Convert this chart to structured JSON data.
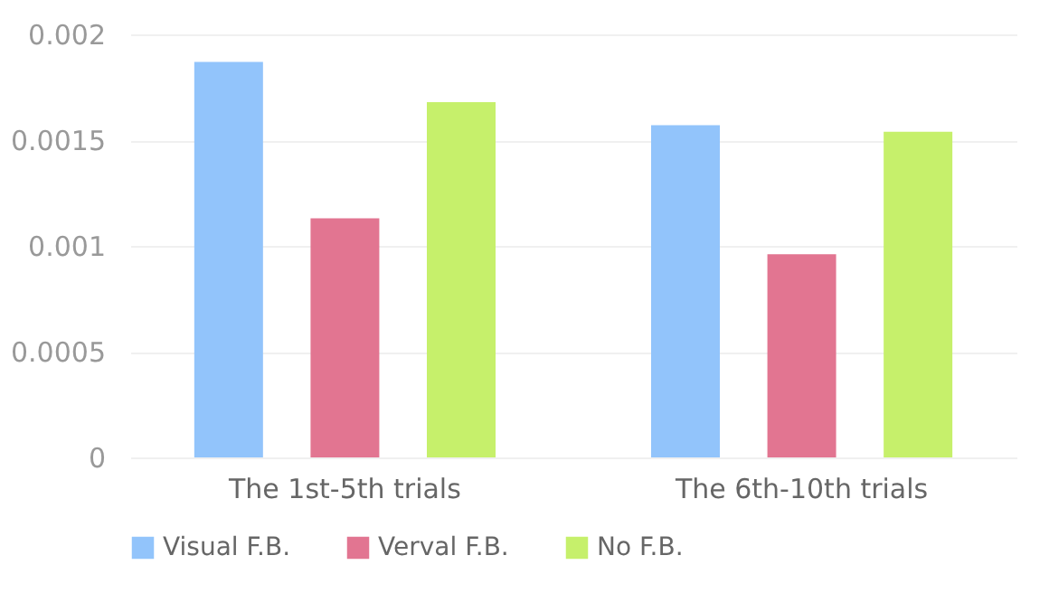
{
  "chart_data": {
    "type": "bar",
    "categories": [
      "The 1st-5th trials",
      "The 6th-10th trials"
    ],
    "series": [
      {
        "name": "Visual F.B.",
        "color": "#92c4fb",
        "values": [
          0.00187,
          0.00157
        ]
      },
      {
        "name": "Verval F.B.",
        "color": "#e27591",
        "values": [
          0.00113,
          0.00096
        ]
      },
      {
        "name": "No F.B.",
        "color": "#c6f06b",
        "values": [
          0.00168,
          0.00154
        ]
      }
    ],
    "ylim": [
      0,
      0.002
    ],
    "yticks": [
      0,
      0.0005,
      0.001,
      0.0015,
      0.002
    ],
    "grid": "y",
    "legend": "bottom"
  }
}
